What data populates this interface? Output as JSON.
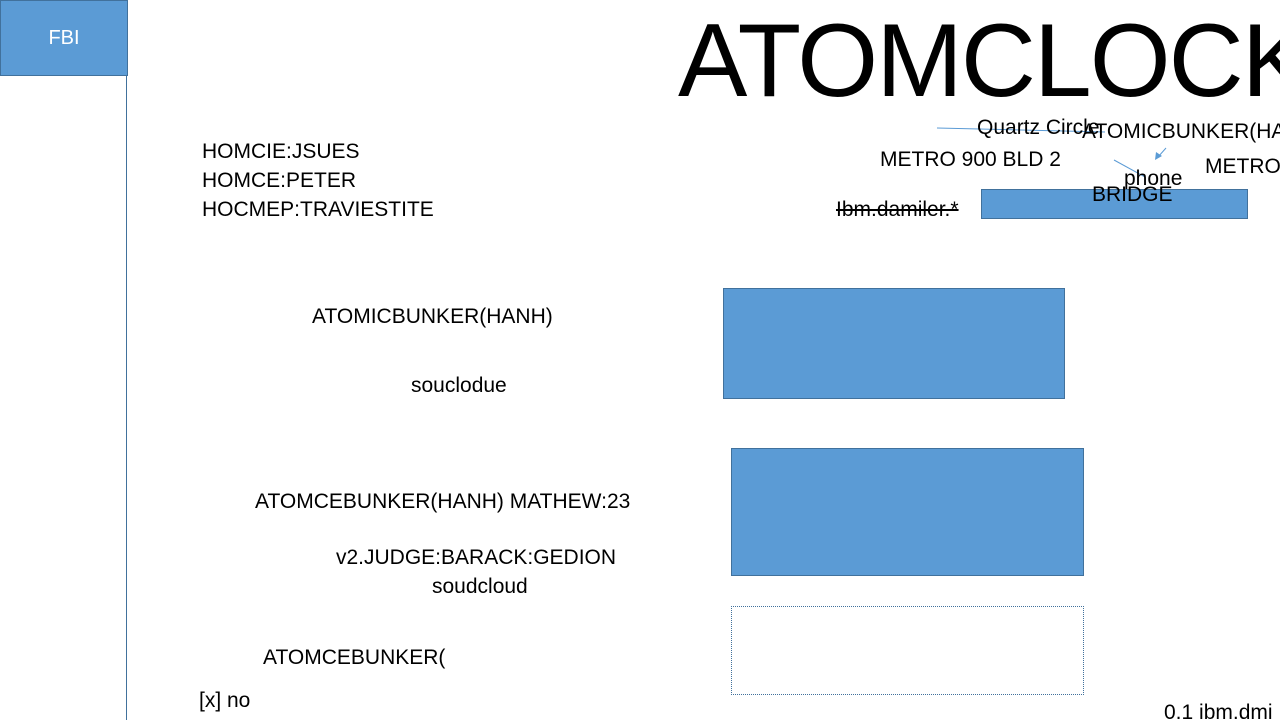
{
  "sidebar": {
    "label": "FBI"
  },
  "title": "ATOMCLOCK",
  "header_left": {
    "lines": [
      "HOMCIE:JSUES",
      "HOMCE:PETER",
      "HOCMEP:TRAVIESTITE"
    ]
  },
  "header_right": {
    "quartz": "Quartz Circle",
    "bunker": "ATOMICBUNKER(HA",
    "metro_bld": "METRO 900 BLD 2",
    "metro_short": "METRO",
    "phone": "phone",
    "bridge": "BRIDGE",
    "ibm": "Ibm.damiler.*"
  },
  "sections": {
    "s1_title": "ATOMICBUNKER(HANH)",
    "s1_sub": "souclodue",
    "s2_title": "ATOMCEBUNKER(HANH) MATHEW:23",
    "s2_line2": "v2.JUDGE:BARACK:GEDION",
    "s2_line3": "soudcloud",
    "s3_title": "ATOMCEBUNKER(",
    "s3_check": "[x] no"
  },
  "footer": {
    "ibm": "0.1 ibm.dmi"
  },
  "colors": {
    "accent": "#5b9bd5",
    "border": "#41719c"
  }
}
